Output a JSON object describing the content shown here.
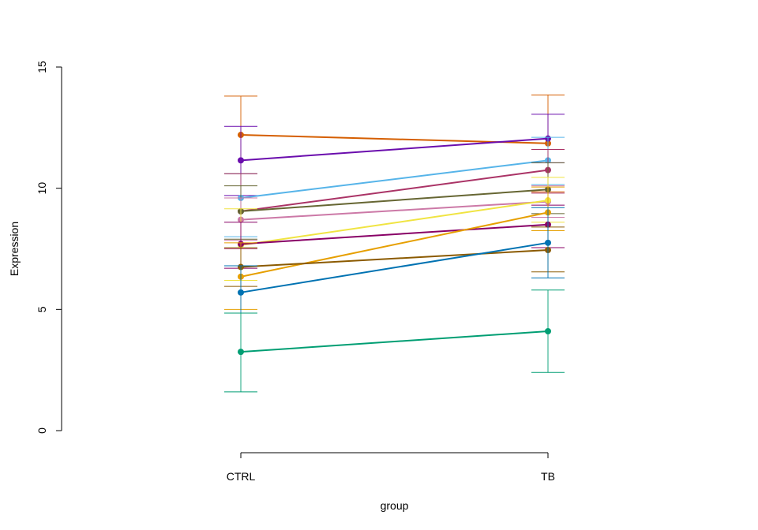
{
  "chart_data": {
    "type": "line",
    "xlabel": "group",
    "ylabel": "Expression",
    "categories": [
      "CTRL",
      "TB"
    ],
    "ylim": [
      0,
      15
    ],
    "yticks": [
      0,
      5,
      10,
      15
    ],
    "grid": false,
    "legend": "none",
    "series": [
      {
        "color": "#D55E00",
        "values": [
          12.2,
          11.85
        ],
        "err_low": [
          10.6,
          9.85
        ],
        "err_high": [
          13.8,
          13.85
        ]
      },
      {
        "color": "#6A0DAD",
        "values": [
          11.15,
          12.05
        ],
        "err_low": [
          9.7,
          11.05
        ],
        "err_high": [
          12.55,
          13.05
        ]
      },
      {
        "color": "#56B4E9",
        "values": [
          9.6,
          11.15
        ],
        "err_low": [
          8.0,
          10.15
        ],
        "err_high": [
          10.6,
          12.1
        ]
      },
      {
        "color": "#AA3366",
        "values": [
          9.05,
          10.75
        ],
        "err_low": [
          7.5,
          9.8
        ],
        "err_high": [
          10.6,
          11.6
        ]
      },
      {
        "color": "#666633",
        "values": [
          9.05,
          9.95
        ],
        "err_low": [
          7.9,
          8.95
        ],
        "err_high": [
          10.1,
          11.05
        ]
      },
      {
        "color": "#CC79A7",
        "values": [
          8.7,
          9.45
        ],
        "err_low": [
          7.85,
          8.8
        ],
        "err_high": [
          9.6,
          10.1
        ]
      },
      {
        "color": "#F0E442",
        "values": [
          7.65,
          9.5
        ],
        "err_low": [
          6.2,
          8.6
        ],
        "err_high": [
          9.15,
          10.45
        ]
      },
      {
        "color": "#880066",
        "values": [
          7.7,
          8.5
        ],
        "err_low": [
          6.7,
          7.55
        ],
        "err_high": [
          8.6,
          9.3
        ]
      },
      {
        "color": "#E69F00",
        "values": [
          6.35,
          9.0
        ],
        "err_low": [
          5.0,
          8.25
        ],
        "err_high": [
          7.75,
          10.05
        ]
      },
      {
        "color": "#8B5A00",
        "values": [
          6.75,
          7.45
        ],
        "err_low": [
          5.95,
          6.55
        ],
        "err_high": [
          7.55,
          8.4
        ]
      },
      {
        "color": "#0072B2",
        "values": [
          5.7,
          7.75
        ],
        "err_low": [
          4.85,
          6.3
        ],
        "err_high": [
          6.8,
          9.2
        ]
      },
      {
        "color": "#009E73",
        "values": [
          3.25,
          4.1
        ],
        "err_low": [
          1.6,
          2.4
        ],
        "err_high": [
          4.85,
          5.8
        ]
      }
    ]
  }
}
